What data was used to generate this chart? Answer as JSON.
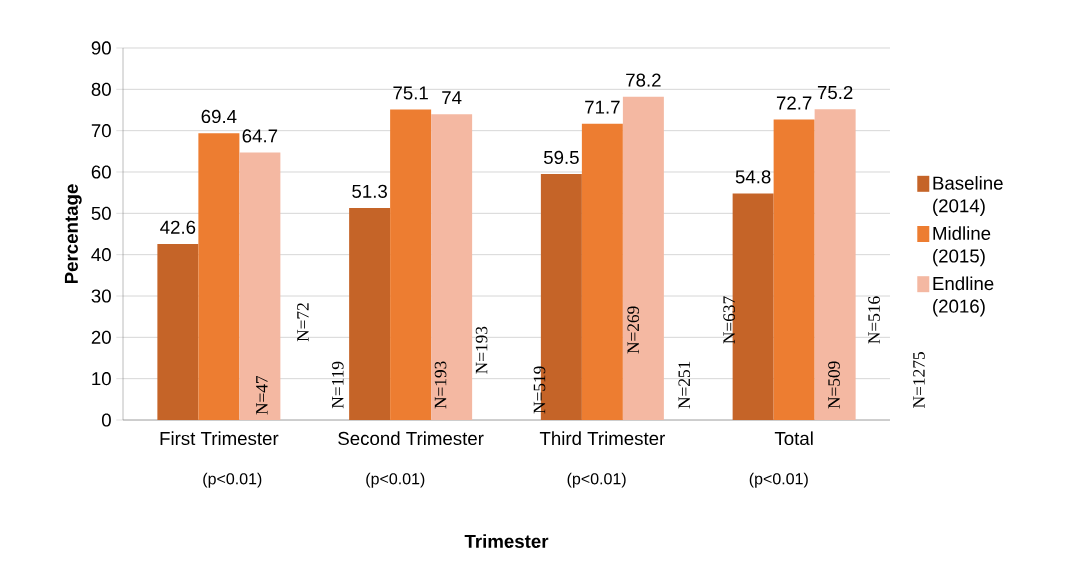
{
  "chart_data": {
    "type": "bar",
    "xlabel": "Trimester",
    "ylabel": "Percentage",
    "categories": [
      "First Trimester",
      "Second Trimester",
      "Third Trimester",
      "Total"
    ],
    "series": [
      {
        "name": "Baseline (2014)",
        "color": "#c56428",
        "values": [
          42.6,
          51.3,
          59.5,
          54.8
        ]
      },
      {
        "name": "Midline (2015)",
        "color": "#ed7d31",
        "values": [
          69.4,
          75.1,
          71.7,
          72.7
        ]
      },
      {
        "name": "Endline (2016)",
        "color": "#f4b8a2",
        "values": [
          64.7,
          74,
          78.2,
          75.2
        ]
      }
    ],
    "ylim": [
      0,
      90
    ],
    "yticks": [
      0,
      10,
      20,
      30,
      40,
      50,
      60,
      70,
      80,
      90
    ],
    "grid": "y",
    "legend": "right",
    "data_labels": true,
    "annotations": [
      "(p<0.01)",
      "(p<0.01)",
      "(p<0.01)",
      "(p<0.01)",
      "N=47",
      "N=72",
      "N=119",
      "N=193",
      "N=193",
      "N=519",
      "N=269",
      "N=251",
      "N=637",
      "N=509",
      "N=516",
      "N=1275"
    ]
  }
}
